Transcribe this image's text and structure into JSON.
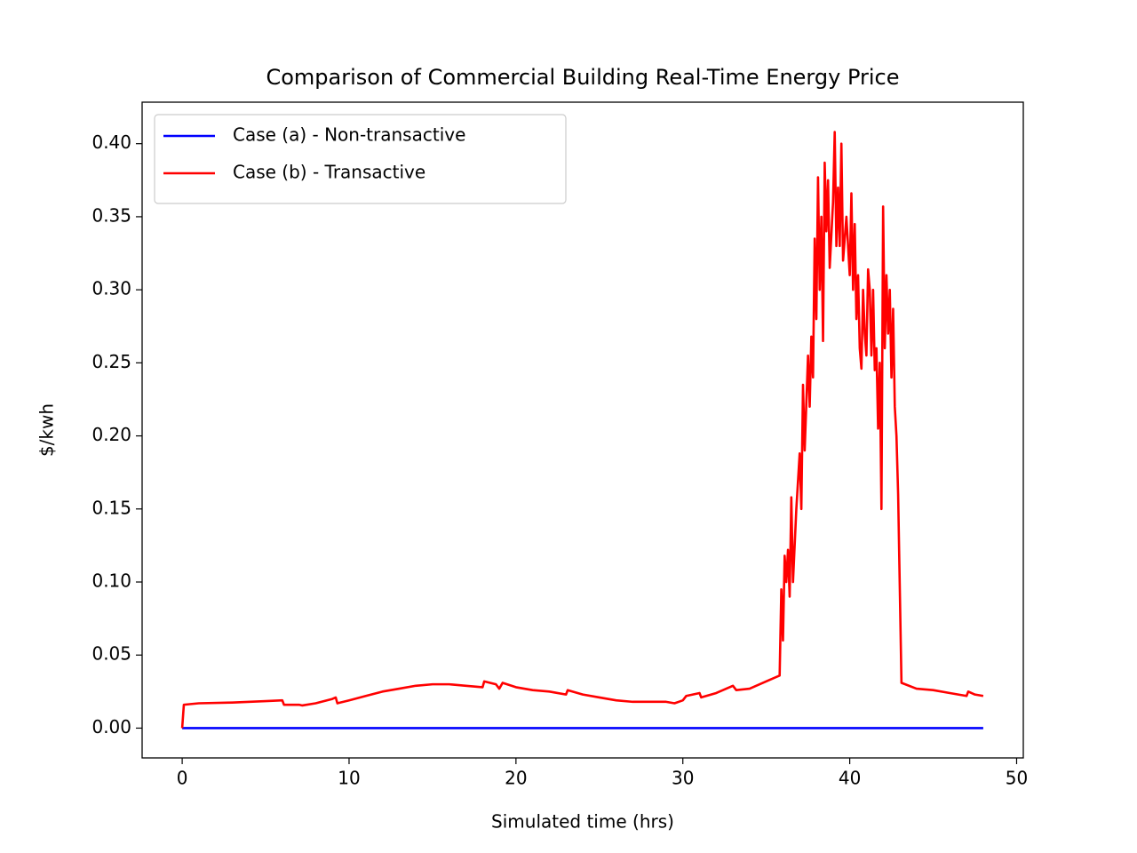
{
  "chart_data": {
    "type": "line",
    "title": "Comparison of Commercial Building Real-Time Energy Price",
    "x_label": "Simulated time (hrs)",
    "y_label": "$/kwh",
    "xlim": [
      -2.4,
      50.4
    ],
    "ylim": [
      -0.0204,
      0.4284
    ],
    "xticks": [
      0,
      10,
      20,
      30,
      40,
      50
    ],
    "yticks": [
      {
        "value": 0,
        "label": "0.00"
      },
      {
        "value": 0.05,
        "label": "0.05"
      },
      {
        "value": 0.1,
        "label": "0.10"
      },
      {
        "value": 0.15,
        "label": "0.15"
      },
      {
        "value": 0.2,
        "label": "0.20"
      },
      {
        "value": 0.25,
        "label": "0.25"
      },
      {
        "value": 0.3,
        "label": "0.30"
      },
      {
        "value": 0.35,
        "label": "0.35"
      },
      {
        "value": 0.4,
        "label": "0.40"
      }
    ],
    "grid": false,
    "legend": "upper left",
    "series": [
      {
        "name": "Case (a) - Non-transactive",
        "color": "#0000ff",
        "x": [
          0,
          48
        ],
        "values": [
          0,
          0
        ]
      },
      {
        "name": "Case (b) - Transactive",
        "color": "#ff0000",
        "x": [
          0,
          0.1,
          1,
          3,
          5,
          6,
          6.1,
          7,
          7.2,
          8,
          9,
          9.2,
          9.3,
          10,
          11,
          12,
          13,
          14,
          15,
          16,
          17,
          18,
          18.1,
          18.8,
          19,
          19.2,
          20,
          21,
          22,
          23,
          23.1,
          24,
          25,
          26,
          27,
          28,
          29,
          29.5,
          30,
          30.2,
          31,
          31.1,
          32,
          33,
          33.2,
          34,
          35,
          35.8,
          35.9,
          36,
          36.1,
          36.2,
          36.3,
          36.4,
          36.5,
          36.6,
          36.8,
          37,
          37.1,
          37.2,
          37.3,
          37.5,
          37.6,
          37.7,
          37.8,
          37.9,
          38,
          38.1,
          38.2,
          38.3,
          38.4,
          38.5,
          38.6,
          38.7,
          38.8,
          39,
          39.1,
          39.2,
          39.3,
          39.4,
          39.5,
          39.6,
          39.8,
          40,
          40.1,
          40.2,
          40.3,
          40.4,
          40.5,
          40.6,
          40.7,
          40.8,
          40.9,
          41,
          41.1,
          41.2,
          41.3,
          41.4,
          41.5,
          41.6,
          41.7,
          41.8,
          41.9,
          42,
          42.1,
          42.2,
          42.3,
          42.4,
          42.5,
          42.6,
          42.7,
          42.8,
          42.9,
          43.1,
          44,
          45,
          46,
          47,
          47.1,
          47.5,
          48
        ],
        "values": [
          0,
          0.016,
          0.017,
          0.0175,
          0.0185,
          0.019,
          0.016,
          0.016,
          0.0155,
          0.017,
          0.02,
          0.021,
          0.017,
          0.019,
          0.022,
          0.025,
          0.027,
          0.029,
          0.03,
          0.03,
          0.029,
          0.028,
          0.032,
          0.03,
          0.027,
          0.031,
          0.028,
          0.026,
          0.025,
          0.023,
          0.026,
          0.023,
          0.021,
          0.019,
          0.018,
          0.018,
          0.018,
          0.017,
          0.019,
          0.022,
          0.024,
          0.021,
          0.024,
          0.029,
          0.026,
          0.027,
          0.032,
          0.036,
          0.095,
          0.06,
          0.118,
          0.1,
          0.122,
          0.09,
          0.158,
          0.1,
          0.15,
          0.188,
          0.15,
          0.235,
          0.19,
          0.255,
          0.22,
          0.268,
          0.24,
          0.335,
          0.28,
          0.377,
          0.3,
          0.35,
          0.265,
          0.387,
          0.34,
          0.375,
          0.315,
          0.36,
          0.408,
          0.33,
          0.37,
          0.33,
          0.4,
          0.32,
          0.35,
          0.31,
          0.366,
          0.3,
          0.345,
          0.28,
          0.31,
          0.26,
          0.246,
          0.3,
          0.27,
          0.255,
          0.314,
          0.3,
          0.255,
          0.3,
          0.245,
          0.26,
          0.205,
          0.25,
          0.15,
          0.357,
          0.26,
          0.31,
          0.27,
          0.3,
          0.24,
          0.287,
          0.22,
          0.2,
          0.16,
          0.031,
          0.027,
          0.026,
          0.024,
          0.022,
          0.025,
          0.023,
          0.022
        ]
      }
    ]
  }
}
